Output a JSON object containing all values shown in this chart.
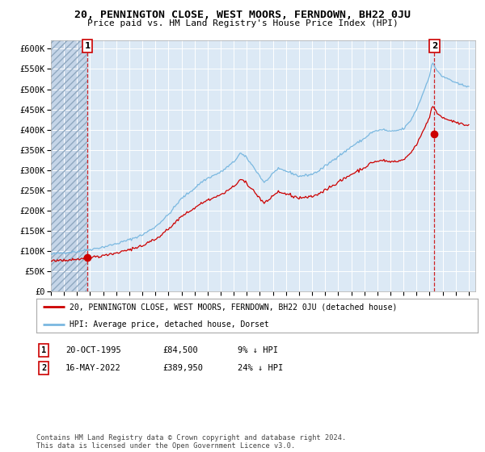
{
  "title": "20, PENNINGTON CLOSE, WEST MOORS, FERNDOWN, BH22 0JU",
  "subtitle": "Price paid vs. HM Land Registry's House Price Index (HPI)",
  "xlim_start": 1993.0,
  "xlim_end": 2025.5,
  "ylim": [
    0,
    620000
  ],
  "yticks": [
    0,
    50000,
    100000,
    150000,
    200000,
    250000,
    300000,
    350000,
    400000,
    450000,
    500000,
    550000,
    600000
  ],
  "ytick_labels": [
    "£0",
    "£50K",
    "£100K",
    "£150K",
    "£200K",
    "£250K",
    "£300K",
    "£350K",
    "£400K",
    "£450K",
    "£500K",
    "£550K",
    "£600K"
  ],
  "xtick_years": [
    1993,
    1994,
    1995,
    1996,
    1997,
    1998,
    1999,
    2000,
    2001,
    2002,
    2003,
    2004,
    2005,
    2006,
    2007,
    2008,
    2009,
    2010,
    2011,
    2012,
    2013,
    2014,
    2015,
    2016,
    2017,
    2018,
    2019,
    2020,
    2021,
    2022,
    2023,
    2024,
    2025
  ],
  "hpi_color": "#7ab8e0",
  "price_color": "#cc0000",
  "marker_color": "#cc0000",
  "bg_color": "#dce9f5",
  "grid_color": "#ffffff",
  "sale1_x": 1995.8,
  "sale1_y": 84500,
  "sale1_label": "1",
  "sale1_date": "20-OCT-1995",
  "sale1_price": "£84,500",
  "sale1_hpi": "9% ↓ HPI",
  "sale2_x": 2022.37,
  "sale2_y": 389950,
  "sale2_label": "2",
  "sale2_date": "16-MAY-2022",
  "sale2_price": "£389,950",
  "sale2_hpi": "24% ↓ HPI",
  "legend_line1": "20, PENNINGTON CLOSE, WEST MOORS, FERNDOWN, BH22 0JU (detached house)",
  "legend_line2": "HPI: Average price, detached house, Dorset",
  "footer": "Contains HM Land Registry data © Crown copyright and database right 2024.\nThis data is licensed under the Open Government Licence v3.0."
}
